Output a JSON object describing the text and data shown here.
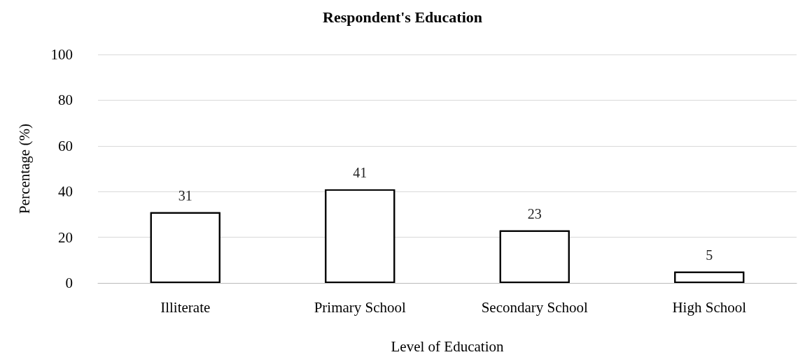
{
  "chart_data": {
    "type": "bar",
    "title": "Respondent's Education",
    "xlabel": "Level of Education",
    "ylabel": "Percentage (%)",
    "categories": [
      "Illiterate",
      "Primary School",
      "Secondary School",
      "High School"
    ],
    "values": [
      31,
      41,
      23,
      5
    ],
    "color": "#ffffff",
    "ylim": [
      0,
      100
    ],
    "yticks": [
      0,
      20,
      40,
      60,
      80,
      100
    ],
    "grid": "y",
    "data_labels": true
  }
}
